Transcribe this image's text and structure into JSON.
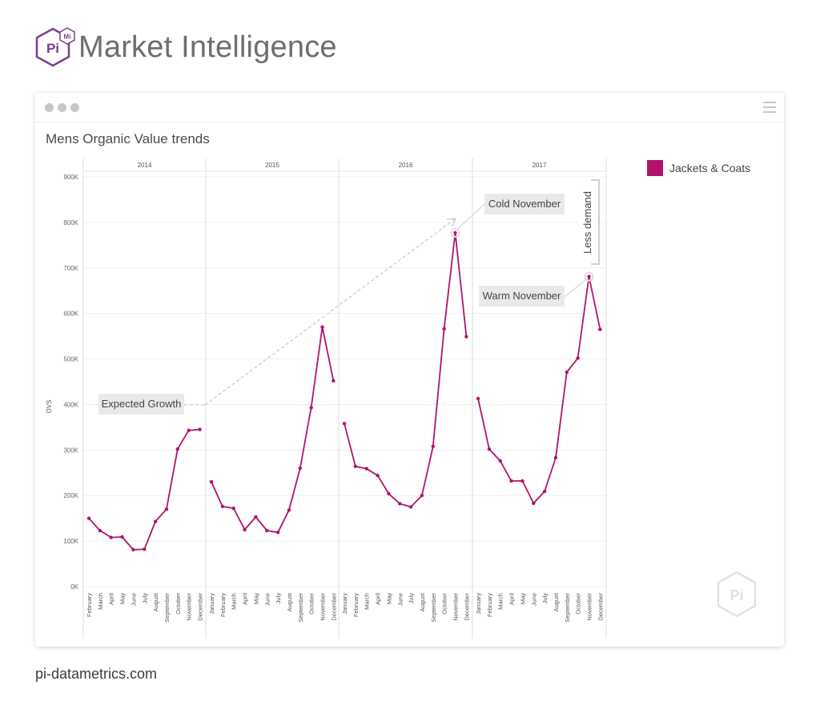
{
  "header": {
    "logo_label": "Pi",
    "logo_badge": "Mi",
    "title": "Market Intelligence"
  },
  "card": {
    "title": "Mens Organic Value trends",
    "watermark_label": "Pi"
  },
  "legend": {
    "label": "Jackets & Coats"
  },
  "footer": {
    "url": "pi-datametrics.com"
  },
  "colors": {
    "series": "#b0146d",
    "brand": "#7a3d8f"
  },
  "chart_data": {
    "type": "line",
    "title": "Mens Organic Value trends",
    "ylabel": "OVS",
    "xlabel": "",
    "ylim": [
      0,
      900000
    ],
    "yticks": [
      "0K",
      "100K",
      "200K",
      "300K",
      "400K",
      "500K",
      "600K",
      "700K",
      "800K",
      "900K"
    ],
    "grid": true,
    "legend_position": "right",
    "series_name": "Jackets & Coats",
    "panels": [
      {
        "label": "2014",
        "months": [
          "February",
          "March",
          "April",
          "May",
          "June",
          "July",
          "August",
          "September",
          "October",
          "November",
          "December"
        ],
        "values": [
          150000,
          123000,
          108000,
          109000,
          81000,
          82000,
          143000,
          170000,
          302000,
          343000,
          345000
        ]
      },
      {
        "label": "2015",
        "months": [
          "January",
          "February",
          "March",
          "April",
          "May",
          "June",
          "July",
          "August",
          "September",
          "October",
          "November",
          "December"
        ],
        "values": [
          230000,
          176000,
          172000,
          125000,
          153000,
          123000,
          119000,
          168000,
          260000,
          393000,
          570000,
          452000
        ]
      },
      {
        "label": "2016",
        "months": [
          "January",
          "February",
          "March",
          "April",
          "May",
          "June",
          "July",
          "August",
          "September",
          "October",
          "November",
          "December"
        ],
        "values": [
          358000,
          264000,
          259000,
          244000,
          204000,
          182000,
          175000,
          200000,
          308000,
          566000,
          777000,
          549000
        ]
      },
      {
        "label": "2017",
        "months": [
          "January",
          "February",
          "March",
          "April",
          "May",
          "June",
          "July",
          "August",
          "September",
          "October",
          "November",
          "December"
        ],
        "values": [
          413000,
          302000,
          276000,
          232000,
          232000,
          183000,
          209000,
          283000,
          471000,
          502000,
          681000,
          565000
        ]
      }
    ],
    "annotations": [
      {
        "name": "expected-growth",
        "text": "Expected Growth"
      },
      {
        "name": "cold-november",
        "text": "Cold November"
      },
      {
        "name": "warm-november",
        "text": "Warm November"
      },
      {
        "name": "less-demand",
        "text": "Less demand"
      }
    ]
  }
}
